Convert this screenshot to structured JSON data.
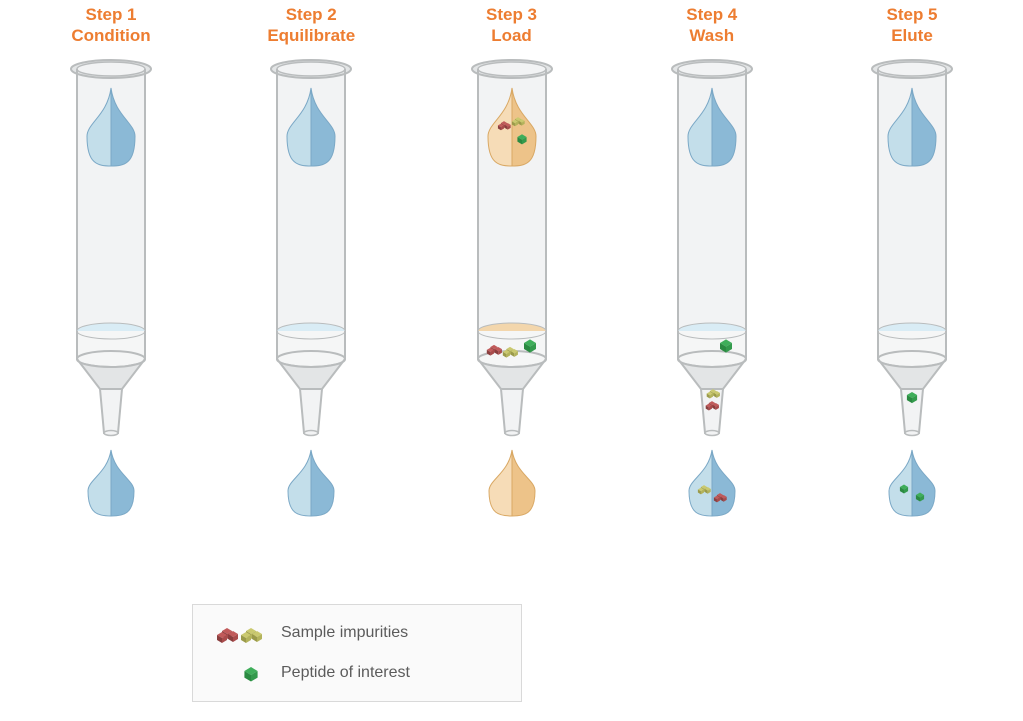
{
  "colors": {
    "title": "#ed7d31",
    "legend_text": "#5b5b5b",
    "legend_border": "#d9d9d9",
    "legend_bg": "#fafafa",
    "glass_stroke": "#b9bcbd",
    "glass_fill": "#e3e5e6",
    "glass_fill_light": "#f2f3f4",
    "frit_fill": "#f5f6f6",
    "bed_clear": "#d9ecf5",
    "bed_sample": "#f3d6ac",
    "drop_left_blue": "#c3deea",
    "drop_right_blue": "#8bb9d6",
    "drop_stroke_blue": "#7ba8c6",
    "drop_left_tan": "#f6dcb7",
    "drop_right_tan": "#edc389",
    "drop_stroke_tan": "#d9a864",
    "cube_red_top": "#c15a5a",
    "cube_red_left": "#8a3e3e",
    "cube_red_right": "#a94b4b",
    "cube_yel_top": "#cac96f",
    "cube_yel_left": "#9a9a4a",
    "cube_yel_right": "#b3b35b",
    "cube_grn_top": "#3fae5a",
    "cube_grn_left": "#2a8a41",
    "cube_grn_right": "#339a4c"
  },
  "title_fontsize": 17,
  "legend_fontsize": 16,
  "steps": [
    {
      "title_line1": "Step 1",
      "title_line2": "Condition",
      "top_drop_color": "blue",
      "top_drop_contents": [],
      "bed_color": "clear",
      "bed_contents": [],
      "tip_contents": [],
      "bottom_drop_color": "blue",
      "bottom_drop_contents": []
    },
    {
      "title_line1": "Step 2",
      "title_line2": "Equilibrate",
      "top_drop_color": "blue",
      "top_drop_contents": [],
      "bed_color": "clear",
      "bed_contents": [],
      "tip_contents": [],
      "bottom_drop_color": "blue",
      "bottom_drop_contents": []
    },
    {
      "title_line1": "Step 3",
      "title_line2": "Load",
      "top_drop_color": "tan",
      "top_drop_contents": [
        "red",
        "yellow",
        "green"
      ],
      "bed_color": "sample",
      "bed_contents": [
        "red",
        "yellow",
        "green"
      ],
      "tip_contents": [],
      "bottom_drop_color": "tan",
      "bottom_drop_contents": []
    },
    {
      "title_line1": "Step 4",
      "title_line2": "Wash",
      "top_drop_color": "blue",
      "top_drop_contents": [],
      "bed_color": "clear",
      "bed_contents": [
        "green"
      ],
      "tip_contents": [
        "yellow",
        "red"
      ],
      "bottom_drop_color": "blue",
      "bottom_drop_contents": [
        "yellow",
        "red"
      ]
    },
    {
      "title_line1": "Step 5",
      "title_line2": "Elute",
      "top_drop_color": "blue",
      "top_drop_contents": [],
      "bed_color": "clear",
      "bed_contents": [],
      "tip_contents": [
        "green"
      ],
      "bottom_drop_color": "blue",
      "bottom_drop_contents": [
        "green",
        "green"
      ]
    }
  ],
  "legend": {
    "row1_label": "Sample impurities",
    "row1_cubes": [
      "red",
      "yellow"
    ],
    "row2_label": "Peptide of interest",
    "row2_cubes": [
      "green"
    ]
  }
}
